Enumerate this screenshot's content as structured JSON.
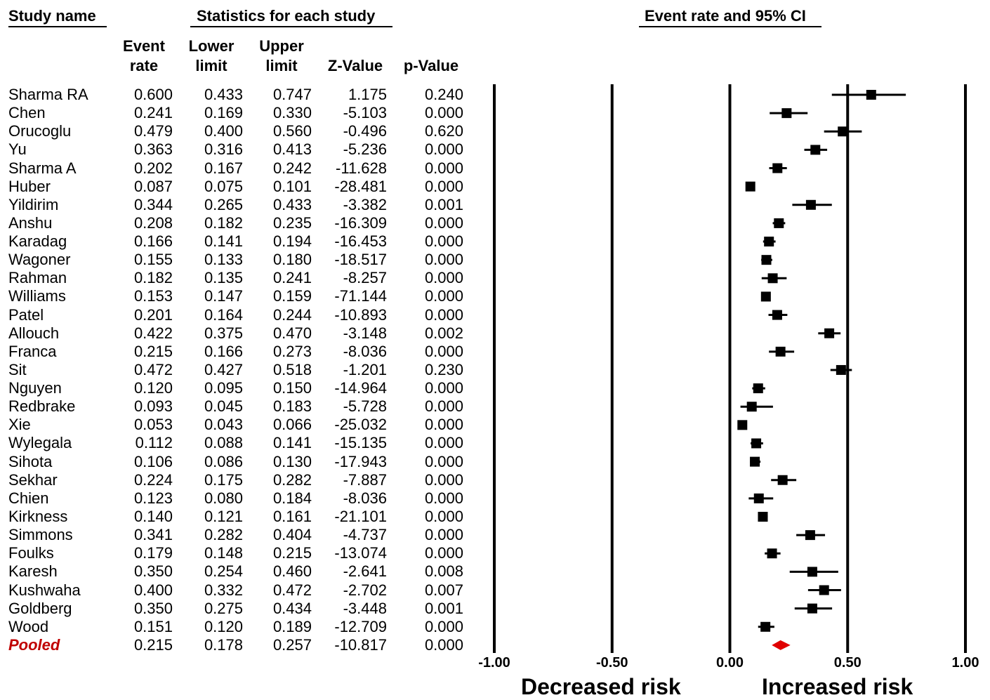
{
  "headers": {
    "study_name": "Study name",
    "statistics": "Statistics for each study",
    "ci": "Event rate and 95% CI",
    "event_rate": [
      "Event",
      "rate"
    ],
    "lower_limit": [
      "Lower",
      "limit"
    ],
    "upper_limit": [
      "Upper",
      "limit"
    ],
    "z_value": "Z-Value",
    "p_value": "p-Value"
  },
  "risk_labels": {
    "decreased": "Decreased risk",
    "increased": "Increased risk"
  },
  "colors": {
    "study_marker": "#000000",
    "pooled": "#e00000",
    "pooled_label": "#c00000"
  },
  "chart_data": {
    "type": "forest",
    "title": "Event rate and 95% CI",
    "x_ticks": [
      "-1.00",
      "-0.50",
      "0.00",
      "0.50",
      "1.00"
    ],
    "x_tick_values": [
      -1,
      -0.5,
      0,
      0.5,
      1
    ],
    "xlim": [
      -1,
      1
    ],
    "studies": [
      {
        "name": "Sharma RA",
        "rate": "0.600",
        "lower": "0.433",
        "upper": "0.747",
        "z": "1.175",
        "p": "0.240"
      },
      {
        "name": "Chen",
        "rate": "0.241",
        "lower": "0.169",
        "upper": "0.330",
        "z": "-5.103",
        "p": "0.000"
      },
      {
        "name": "Orucoglu",
        "rate": "0.479",
        "lower": "0.400",
        "upper": "0.560",
        "z": "-0.496",
        "p": "0.620"
      },
      {
        "name": "Yu",
        "rate": "0.363",
        "lower": "0.316",
        "upper": "0.413",
        "z": "-5.236",
        "p": "0.000"
      },
      {
        "name": "Sharma A",
        "rate": "0.202",
        "lower": "0.167",
        "upper": "0.242",
        "z": "-11.628",
        "p": "0.000"
      },
      {
        "name": "Huber",
        "rate": "0.087",
        "lower": "0.075",
        "upper": "0.101",
        "z": "-28.481",
        "p": "0.000"
      },
      {
        "name": "Yildirim",
        "rate": "0.344",
        "lower": "0.265",
        "upper": "0.433",
        "z": "-3.382",
        "p": "0.001"
      },
      {
        "name": "Anshu",
        "rate": "0.208",
        "lower": "0.182",
        "upper": "0.235",
        "z": "-16.309",
        "p": "0.000"
      },
      {
        "name": "Karadag",
        "rate": "0.166",
        "lower": "0.141",
        "upper": "0.194",
        "z": "-16.453",
        "p": "0.000"
      },
      {
        "name": "Wagoner",
        "rate": "0.155",
        "lower": "0.133",
        "upper": "0.180",
        "z": "-18.517",
        "p": "0.000"
      },
      {
        "name": "Rahman",
        "rate": "0.182",
        "lower": "0.135",
        "upper": "0.241",
        "z": "-8.257",
        "p": "0.000"
      },
      {
        "name": "Williams",
        "rate": "0.153",
        "lower": "0.147",
        "upper": "0.159",
        "z": "-71.144",
        "p": "0.000"
      },
      {
        "name": "Patel",
        "rate": "0.201",
        "lower": "0.164",
        "upper": "0.244",
        "z": "-10.893",
        "p": "0.000"
      },
      {
        "name": "Allouch",
        "rate": "0.422",
        "lower": "0.375",
        "upper": "0.470",
        "z": "-3.148",
        "p": "0.002"
      },
      {
        "name": "Franca",
        "rate": "0.215",
        "lower": "0.166",
        "upper": "0.273",
        "z": "-8.036",
        "p": "0.000"
      },
      {
        "name": "Sit",
        "rate": "0.472",
        "lower": "0.427",
        "upper": "0.518",
        "z": "-1.201",
        "p": "0.230"
      },
      {
        "name": "Nguyen",
        "rate": "0.120",
        "lower": "0.095",
        "upper": "0.150",
        "z": "-14.964",
        "p": "0.000"
      },
      {
        "name": "Redbrake",
        "rate": "0.093",
        "lower": "0.045",
        "upper": "0.183",
        "z": "-5.728",
        "p": "0.000"
      },
      {
        "name": "Xie",
        "rate": "0.053",
        "lower": "0.043",
        "upper": "0.066",
        "z": "-25.032",
        "p": "0.000"
      },
      {
        "name": "Wylegala",
        "rate": "0.112",
        "lower": "0.088",
        "upper": "0.141",
        "z": "-15.135",
        "p": "0.000"
      },
      {
        "name": "Sihota",
        "rate": "0.106",
        "lower": "0.086",
        "upper": "0.130",
        "z": "-17.943",
        "p": "0.000"
      },
      {
        "name": "Sekhar",
        "rate": "0.224",
        "lower": "0.175",
        "upper": "0.282",
        "z": "-7.887",
        "p": "0.000"
      },
      {
        "name": "Chien",
        "rate": "0.123",
        "lower": "0.080",
        "upper": "0.184",
        "z": "-8.036",
        "p": "0.000"
      },
      {
        "name": "Kirkness",
        "rate": "0.140",
        "lower": "0.121",
        "upper": "0.161",
        "z": "-21.101",
        "p": "0.000"
      },
      {
        "name": "Simmons",
        "rate": "0.341",
        "lower": "0.282",
        "upper": "0.404",
        "z": "-4.737",
        "p": "0.000"
      },
      {
        "name": "Foulks",
        "rate": "0.179",
        "lower": "0.148",
        "upper": "0.215",
        "z": "-13.074",
        "p": "0.000"
      },
      {
        "name": "Karesh",
        "rate": "0.350",
        "lower": "0.254",
        "upper": "0.460",
        "z": "-2.641",
        "p": "0.008"
      },
      {
        "name": "Kushwaha",
        "rate": "0.400",
        "lower": "0.332",
        "upper": "0.472",
        "z": "-2.702",
        "p": "0.007"
      },
      {
        "name": "Goldberg",
        "rate": "0.350",
        "lower": "0.275",
        "upper": "0.434",
        "z": "-3.448",
        "p": "0.001"
      },
      {
        "name": "Wood",
        "rate": "0.151",
        "lower": "0.120",
        "upper": "0.189",
        "z": "-12.709",
        "p": "0.000"
      }
    ],
    "pooled": {
      "name": "Pooled",
      "rate": "0.215",
      "lower": "0.178",
      "upper": "0.257",
      "z": "-10.817",
      "p": "0.000"
    }
  }
}
